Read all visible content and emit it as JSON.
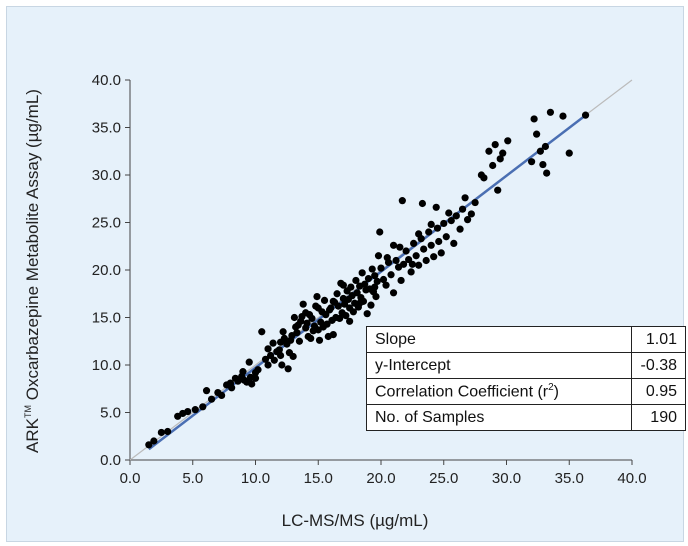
{
  "chart_data": {
    "type": "scatter",
    "title": "",
    "xlabel": "LC-MS/MS (µg/mL)",
    "ylabel_prefix": "ARK",
    "ylabel_tm": "TM",
    "ylabel_rest": " Oxcarbazepine Metabolite Assay (µg/mL)",
    "xlim": [
      0,
      40
    ],
    "ylim": [
      0,
      40
    ],
    "x_ticks": [
      "0.0",
      "5.0",
      "10.0",
      "15.0",
      "20.0",
      "25.0",
      "30.0",
      "35.0",
      "40.0"
    ],
    "y_ticks": [
      "0.0",
      "5.0",
      "10.0",
      "15.0",
      "20.0",
      "25.0",
      "30.0",
      "35.0",
      "40.0"
    ],
    "grid": false,
    "point_color": "#000000",
    "identity_line": {
      "x": [
        0,
        40
      ],
      "y": [
        0,
        40
      ],
      "color": "#bbbbbb"
    },
    "regression_line": {
      "slope": 1.01,
      "intercept": -0.38,
      "x_range": [
        1.5,
        36.5
      ],
      "color": "#4a6fb3"
    },
    "points": [
      [
        1.5,
        1.6
      ],
      [
        1.9,
        2.0
      ],
      [
        2.5,
        2.9
      ],
      [
        3.0,
        3.0
      ],
      [
        3.8,
        4.6
      ],
      [
        4.2,
        4.9
      ],
      [
        4.6,
        5.1
      ],
      [
        5.2,
        5.3
      ],
      [
        5.8,
        5.6
      ],
      [
        6.1,
        7.3
      ],
      [
        6.5,
        6.4
      ],
      [
        7.0,
        7.1
      ],
      [
        7.3,
        6.8
      ],
      [
        7.7,
        7.9
      ],
      [
        8.0,
        8.1
      ],
      [
        8.1,
        7.6
      ],
      [
        8.4,
        8.6
      ],
      [
        8.6,
        8.3
      ],
      [
        8.9,
        8.8
      ],
      [
        9.1,
        8.4
      ],
      [
        9.3,
        8.2
      ],
      [
        9.5,
        10.3
      ],
      [
        9.6,
        8.7
      ],
      [
        9.7,
        8.0
      ],
      [
        10.0,
        9.2
      ],
      [
        10.2,
        9.5
      ],
      [
        10.5,
        13.5
      ],
      [
        10.8,
        10.6
      ],
      [
        11.0,
        11.7
      ],
      [
        11.2,
        11.0
      ],
      [
        11.4,
        12.3
      ],
      [
        11.5,
        10.5
      ],
      [
        11.7,
        11.4
      ],
      [
        11.9,
        11.6
      ],
      [
        12.0,
        11.0
      ],
      [
        12.1,
        10.0
      ],
      [
        12.2,
        13.5
      ],
      [
        12.3,
        12.8
      ],
      [
        12.5,
        12.2
      ],
      [
        12.6,
        9.6
      ],
      [
        12.7,
        11.3
      ],
      [
        12.8,
        12.6
      ],
      [
        12.9,
        13.1
      ],
      [
        13.0,
        10.9
      ],
      [
        13.1,
        15.0
      ],
      [
        13.3,
        13.4
      ],
      [
        13.4,
        14.2
      ],
      [
        13.5,
        12.5
      ],
      [
        13.6,
        14.6
      ],
      [
        13.7,
        15.1
      ],
      [
        13.8,
        16.4
      ],
      [
        14.0,
        13.9
      ],
      [
        14.1,
        14.4
      ],
      [
        14.2,
        13.0
      ],
      [
        14.3,
        15.3
      ],
      [
        14.4,
        12.8
      ],
      [
        14.5,
        14.9
      ],
      [
        14.6,
        13.6
      ],
      [
        14.7,
        14.1
      ],
      [
        14.8,
        16.2
      ],
      [
        14.9,
        17.2
      ],
      [
        15.0,
        13.7
      ],
      [
        15.1,
        12.6
      ],
      [
        15.2,
        14.5
      ],
      [
        15.3,
        15.6
      ],
      [
        15.4,
        14.0
      ],
      [
        15.5,
        16.8
      ],
      [
        15.6,
        15.3
      ],
      [
        15.7,
        14.3
      ],
      [
        15.8,
        13.0
      ],
      [
        15.9,
        15.8
      ],
      [
        16.0,
        16.0
      ],
      [
        16.1,
        14.7
      ],
      [
        16.2,
        13.2
      ],
      [
        16.3,
        16.6
      ],
      [
        16.4,
        15.0
      ],
      [
        16.5,
        17.5
      ],
      [
        16.6,
        16.2
      ],
      [
        16.7,
        14.9
      ],
      [
        16.8,
        18.6
      ],
      [
        16.9,
        15.5
      ],
      [
        17.0,
        17.0
      ],
      [
        17.1,
        16.4
      ],
      [
        17.2,
        15.2
      ],
      [
        17.3,
        17.8
      ],
      [
        17.4,
        16.9
      ],
      [
        17.5,
        14.6
      ],
      [
        17.6,
        18.2
      ],
      [
        17.7,
        17.3
      ],
      [
        17.8,
        15.6
      ],
      [
        17.9,
        16.5
      ],
      [
        18.0,
        18.9
      ],
      [
        18.1,
        17.6
      ],
      [
        18.2,
        16.1
      ],
      [
        18.3,
        18.3
      ],
      [
        18.4,
        17.1
      ],
      [
        18.5,
        19.7
      ],
      [
        18.6,
        16.7
      ],
      [
        18.7,
        18.5
      ],
      [
        18.8,
        17.9
      ],
      [
        18.9,
        15.4
      ],
      [
        19.0,
        19.1
      ],
      [
        19.1,
        18.0
      ],
      [
        19.2,
        16.3
      ],
      [
        19.3,
        20.1
      ],
      [
        19.4,
        17.7
      ],
      [
        19.5,
        19.4
      ],
      [
        19.6,
        17.2
      ],
      [
        19.7,
        18.8
      ],
      [
        19.8,
        21.5
      ],
      [
        19.9,
        24.0
      ],
      [
        20.0,
        20.2
      ],
      [
        20.2,
        19.0
      ],
      [
        20.4,
        18.4
      ],
      [
        20.6,
        20.8
      ],
      [
        20.8,
        19.5
      ],
      [
        21.0,
        17.6
      ],
      [
        21.2,
        21.0
      ],
      [
        21.4,
        20.3
      ],
      [
        21.5,
        22.4
      ],
      [
        21.6,
        18.9
      ],
      [
        21.7,
        27.3
      ],
      [
        21.8,
        20.6
      ],
      [
        22.0,
        22.0
      ],
      [
        22.2,
        21.1
      ],
      [
        22.4,
        19.8
      ],
      [
        22.6,
        22.8
      ],
      [
        22.8,
        21.5
      ],
      [
        23.0,
        20.5
      ],
      [
        23.2,
        23.3
      ],
      [
        23.3,
        27.0
      ],
      [
        23.4,
        22.2
      ],
      [
        23.6,
        21.0
      ],
      [
        23.8,
        24.0
      ],
      [
        24.0,
        22.6
      ],
      [
        24.2,
        21.4
      ],
      [
        24.4,
        26.6
      ],
      [
        24.5,
        24.4
      ],
      [
        24.6,
        23.0
      ],
      [
        24.8,
        21.8
      ],
      [
        25.0,
        24.9
      ],
      [
        25.2,
        23.5
      ],
      [
        25.4,
        26.0
      ],
      [
        25.6,
        25.2
      ],
      [
        25.8,
        22.8
      ],
      [
        26.0,
        25.7
      ],
      [
        26.3,
        24.3
      ],
      [
        26.5,
        26.4
      ],
      [
        26.7,
        27.6
      ],
      [
        26.9,
        25.3
      ],
      [
        27.2,
        25.9
      ],
      [
        27.5,
        27.1
      ],
      [
        28.0,
        30.0
      ],
      [
        28.2,
        29.7
      ],
      [
        28.6,
        32.5
      ],
      [
        28.9,
        31.0
      ],
      [
        29.1,
        33.2
      ],
      [
        29.3,
        28.4
      ],
      [
        29.5,
        31.7
      ],
      [
        29.7,
        32.3
      ],
      [
        32.0,
        31.4
      ],
      [
        32.2,
        35.9
      ],
      [
        32.4,
        34.3
      ],
      [
        32.7,
        32.5
      ],
      [
        32.9,
        31.1
      ],
      [
        33.1,
        33.0
      ],
      [
        33.2,
        30.2
      ],
      [
        33.5,
        36.6
      ],
      [
        34.5,
        36.2
      ],
      [
        35.0,
        32.3
      ],
      [
        36.3,
        36.3
      ],
      [
        10.0,
        8.6
      ],
      [
        16.2,
        16.7
      ],
      [
        17.0,
        18.4
      ],
      [
        18.3,
        16.5
      ],
      [
        19.5,
        18.2
      ],
      [
        22.5,
        20.6
      ],
      [
        24.0,
        24.8
      ],
      [
        21.0,
        22.6
      ],
      [
        15.0,
        16.0
      ],
      [
        13.2,
        14.0
      ],
      [
        12.0,
        12.4
      ],
      [
        11.0,
        10.0
      ],
      [
        9.0,
        9.3
      ],
      [
        8.0,
        8.0
      ],
      [
        14.0,
        15.5
      ],
      [
        17.5,
        16.0
      ],
      [
        20.5,
        21.3
      ],
      [
        23.0,
        23.8
      ],
      [
        30.1,
        33.6
      ]
    ],
    "stats": [
      {
        "label": "Slope",
        "value": "1.01"
      },
      {
        "label": "y-Intercept",
        "value": "-0.38"
      },
      {
        "label_main": "Correlation Coefficient (r",
        "label_sup": "2",
        "label_end": ")",
        "value": "0.95"
      },
      {
        "label": "No. of Samples",
        "value": "190"
      }
    ]
  }
}
